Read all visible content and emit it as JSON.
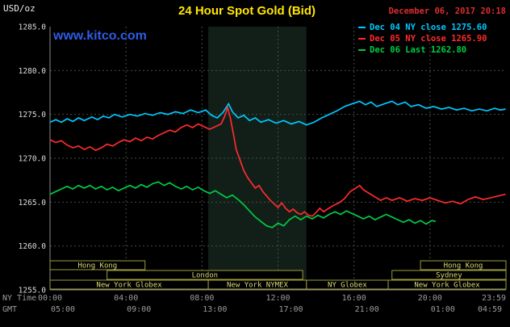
{
  "header": {
    "units_label": "USD/oz",
    "title": "24 Hour Spot Gold (Bid)",
    "datetime": "December 06, 2017 20:18",
    "watermark": "www.kitco.com"
  },
  "legend": {
    "items": [
      {
        "label": "Dec 04 NY close 1275.60",
        "color": "#00c8ff"
      },
      {
        "label": "Dec 05 NY close 1265.90",
        "color": "#ff2b2b"
      },
      {
        "label": "Dec 06 Last 1262.80",
        "color": "#00cc44"
      }
    ]
  },
  "colors": {
    "background": "#000000",
    "title": "#ffe600",
    "datetime": "#dd2c2c",
    "watermark": "#2e5ce6",
    "units_text": "#ededed",
    "y_axis_text": "#dedede",
    "axis_text": "#9c9c9c",
    "axis_line": "#8a8a8a",
    "grid": "#444c44",
    "band": "#121f19",
    "session_text": "#d9d97a",
    "session_border": "#9b9b3d"
  },
  "chart_data": {
    "type": "line",
    "title": "24 Hour Spot Gold (Bid)",
    "ylabel": "USD/oz",
    "x_unit": "hours (NY time)",
    "ylim": [
      1255,
      1285
    ],
    "xlim": [
      0,
      24
    ],
    "grid": true,
    "legend_position": "top-right",
    "y_ticks": [
      1255,
      1260,
      1265,
      1270,
      1275,
      1280,
      1285
    ],
    "grid_vertical_hours": [
      4,
      8,
      12,
      16,
      20
    ],
    "x_ticks_ny": [
      {
        "hour": 0,
        "label": "00:00"
      },
      {
        "hour": 4,
        "label": "04:00"
      },
      {
        "hour": 8,
        "label": "08:00"
      },
      {
        "hour": 12,
        "label": "12:00"
      },
      {
        "hour": 16,
        "label": "16:00"
      },
      {
        "hour": 20,
        "label": "20:00"
      },
      {
        "hour": 23.983,
        "label": "23:59"
      }
    ],
    "x_ticks_gmt": [
      {
        "hour": 0,
        "label": "05:00"
      },
      {
        "hour": 4,
        "label": "09:00"
      },
      {
        "hour": 8,
        "label": "13:00"
      },
      {
        "hour": 12,
        "label": "17:00"
      },
      {
        "hour": 16,
        "label": "21:00"
      },
      {
        "hour": 20,
        "label": "01:00"
      },
      {
        "hour": 23.983,
        "label": "04:59"
      }
    ],
    "row_labels": {
      "ny": "NY Time",
      "gmt": "GMT"
    },
    "band": {
      "start_hour": 8.33,
      "end_hour": 13.5
    },
    "sessions": [
      {
        "label": "Hong Kong",
        "row": 0,
        "start": 0,
        "end": 5
      },
      {
        "label": "Hong Kong",
        "row": 0,
        "start": 19.5,
        "end": 24
      },
      {
        "label": "London",
        "row": 1,
        "start": 3,
        "end": 13.3
      },
      {
        "label": "Sydney",
        "row": 1,
        "start": 18,
        "end": 24
      },
      {
        "label": "New York Globex",
        "row": 2,
        "start": 0,
        "end": 8.33
      },
      {
        "label": "New York NYMEX",
        "row": 2,
        "start": 8.33,
        "end": 13.5
      },
      {
        "label": "NY Globex",
        "row": 2,
        "start": 13.5,
        "end": 17.8
      },
      {
        "label": "New York Globex",
        "row": 2,
        "start": 17.8,
        "end": 24
      }
    ],
    "series": [
      {
        "id": "dec04",
        "name": "Dec 04 NY close",
        "last": 1275.6,
        "color": "#00c8ff",
        "points": [
          [
            0,
            1274.1
          ],
          [
            0.3,
            1274.4
          ],
          [
            0.6,
            1274.1
          ],
          [
            0.9,
            1274.5
          ],
          [
            1.2,
            1274.2
          ],
          [
            1.5,
            1274.6
          ],
          [
            1.8,
            1274.3
          ],
          [
            2.2,
            1274.7
          ],
          [
            2.5,
            1274.4
          ],
          [
            2.8,
            1274.8
          ],
          [
            3.1,
            1274.6
          ],
          [
            3.4,
            1275.0
          ],
          [
            3.8,
            1274.7
          ],
          [
            4.2,
            1275.0
          ],
          [
            4.6,
            1274.8
          ],
          [
            5,
            1275.1
          ],
          [
            5.4,
            1274.9
          ],
          [
            5.8,
            1275.2
          ],
          [
            6.2,
            1275.0
          ],
          [
            6.6,
            1275.3
          ],
          [
            7,
            1275.1
          ],
          [
            7.4,
            1275.5
          ],
          [
            7.8,
            1275.2
          ],
          [
            8.2,
            1275.5
          ],
          [
            8.5,
            1274.9
          ],
          [
            8.8,
            1274.6
          ],
          [
            9.1,
            1275.2
          ],
          [
            9.4,
            1276.2
          ],
          [
            9.6,
            1275.3
          ],
          [
            9.9,
            1274.6
          ],
          [
            10.2,
            1274.9
          ],
          [
            10.5,
            1274.3
          ],
          [
            10.8,
            1274.6
          ],
          [
            11.1,
            1274.1
          ],
          [
            11.5,
            1274.4
          ],
          [
            11.9,
            1274.0
          ],
          [
            12.3,
            1274.3
          ],
          [
            12.7,
            1273.9
          ],
          [
            13.1,
            1274.2
          ],
          [
            13.5,
            1273.8
          ],
          [
            13.9,
            1274.1
          ],
          [
            14.3,
            1274.6
          ],
          [
            14.7,
            1275.0
          ],
          [
            15.1,
            1275.4
          ],
          [
            15.5,
            1275.9
          ],
          [
            15.9,
            1276.2
          ],
          [
            16.3,
            1276.5
          ],
          [
            16.6,
            1276.1
          ],
          [
            16.9,
            1276.4
          ],
          [
            17.2,
            1275.9
          ],
          [
            17.6,
            1276.2
          ],
          [
            18,
            1276.5
          ],
          [
            18.3,
            1276.1
          ],
          [
            18.7,
            1276.4
          ],
          [
            19,
            1275.9
          ],
          [
            19.4,
            1276.1
          ],
          [
            19.8,
            1275.7
          ],
          [
            20.2,
            1275.9
          ],
          [
            20.6,
            1275.6
          ],
          [
            21,
            1275.8
          ],
          [
            21.4,
            1275.5
          ],
          [
            21.8,
            1275.7
          ],
          [
            22.2,
            1275.4
          ],
          [
            22.6,
            1275.6
          ],
          [
            23,
            1275.4
          ],
          [
            23.4,
            1275.7
          ],
          [
            23.7,
            1275.5
          ],
          [
            23.98,
            1275.6
          ]
        ]
      },
      {
        "id": "dec05",
        "name": "Dec 05 NY close",
        "last": 1265.9,
        "color": "#ff2b2b",
        "points": [
          [
            0,
            1272.1
          ],
          [
            0.3,
            1271.8
          ],
          [
            0.6,
            1272.0
          ],
          [
            0.9,
            1271.5
          ],
          [
            1.2,
            1271.2
          ],
          [
            1.5,
            1271.4
          ],
          [
            1.8,
            1271.0
          ],
          [
            2.1,
            1271.3
          ],
          [
            2.4,
            1270.9
          ],
          [
            2.7,
            1271.2
          ],
          [
            3,
            1271.6
          ],
          [
            3.3,
            1271.4
          ],
          [
            3.6,
            1271.8
          ],
          [
            3.9,
            1272.1
          ],
          [
            4.2,
            1271.9
          ],
          [
            4.5,
            1272.3
          ],
          [
            4.8,
            1272.0
          ],
          [
            5.1,
            1272.4
          ],
          [
            5.4,
            1272.2
          ],
          [
            5.7,
            1272.6
          ],
          [
            6,
            1272.9
          ],
          [
            6.3,
            1273.2
          ],
          [
            6.6,
            1273.0
          ],
          [
            6.9,
            1273.5
          ],
          [
            7.2,
            1273.8
          ],
          [
            7.5,
            1273.5
          ],
          [
            7.8,
            1273.9
          ],
          [
            8.1,
            1273.6
          ],
          [
            8.4,
            1273.3
          ],
          [
            8.7,
            1273.6
          ],
          [
            9,
            1273.9
          ],
          [
            9.2,
            1274.8
          ],
          [
            9.35,
            1275.8
          ],
          [
            9.5,
            1274.5
          ],
          [
            9.65,
            1272.8
          ],
          [
            9.8,
            1271.0
          ],
          [
            10,
            1269.8
          ],
          [
            10.2,
            1268.6
          ],
          [
            10.4,
            1267.8
          ],
          [
            10.6,
            1267.2
          ],
          [
            10.8,
            1266.6
          ],
          [
            11,
            1266.9
          ],
          [
            11.2,
            1266.2
          ],
          [
            11.4,
            1265.7
          ],
          [
            11.6,
            1265.2
          ],
          [
            11.8,
            1264.8
          ],
          [
            12,
            1264.4
          ],
          [
            12.2,
            1264.9
          ],
          [
            12.4,
            1264.3
          ],
          [
            12.6,
            1263.9
          ],
          [
            12.8,
            1264.2
          ],
          [
            13,
            1263.8
          ],
          [
            13.2,
            1263.6
          ],
          [
            13.4,
            1263.9
          ],
          [
            13.6,
            1263.5
          ],
          [
            13.8,
            1263.4
          ],
          [
            14,
            1263.8
          ],
          [
            14.2,
            1264.3
          ],
          [
            14.4,
            1263.9
          ],
          [
            14.6,
            1264.2
          ],
          [
            14.9,
            1264.6
          ],
          [
            15.2,
            1264.9
          ],
          [
            15.5,
            1265.4
          ],
          [
            15.8,
            1266.2
          ],
          [
            16.1,
            1266.6
          ],
          [
            16.3,
            1266.9
          ],
          [
            16.5,
            1266.4
          ],
          [
            16.8,
            1266.0
          ],
          [
            17.1,
            1265.6
          ],
          [
            17.4,
            1265.2
          ],
          [
            17.7,
            1265.5
          ],
          [
            18,
            1265.2
          ],
          [
            18.4,
            1265.5
          ],
          [
            18.8,
            1265.1
          ],
          [
            19.2,
            1265.4
          ],
          [
            19.6,
            1265.2
          ],
          [
            20,
            1265.5
          ],
          [
            20.4,
            1265.2
          ],
          [
            20.8,
            1264.9
          ],
          [
            21.2,
            1265.1
          ],
          [
            21.6,
            1264.8
          ],
          [
            22,
            1265.3
          ],
          [
            22.4,
            1265.6
          ],
          [
            22.8,
            1265.3
          ],
          [
            23.2,
            1265.5
          ],
          [
            23.6,
            1265.7
          ],
          [
            23.98,
            1265.9
          ]
        ]
      },
      {
        "id": "dec06",
        "name": "Dec 06 Last",
        "last": 1262.8,
        "color": "#00cc44",
        "points": [
          [
            0,
            1265.9
          ],
          [
            0.3,
            1266.2
          ],
          [
            0.6,
            1266.5
          ],
          [
            0.9,
            1266.8
          ],
          [
            1.2,
            1266.5
          ],
          [
            1.5,
            1266.9
          ],
          [
            1.8,
            1266.6
          ],
          [
            2.1,
            1266.9
          ],
          [
            2.4,
            1266.5
          ],
          [
            2.7,
            1266.8
          ],
          [
            3,
            1266.4
          ],
          [
            3.3,
            1266.7
          ],
          [
            3.6,
            1266.3
          ],
          [
            3.9,
            1266.6
          ],
          [
            4.2,
            1266.9
          ],
          [
            4.5,
            1266.6
          ],
          [
            4.8,
            1267.0
          ],
          [
            5.1,
            1266.7
          ],
          [
            5.4,
            1267.1
          ],
          [
            5.7,
            1267.3
          ],
          [
            6,
            1266.9
          ],
          [
            6.3,
            1267.2
          ],
          [
            6.6,
            1266.8
          ],
          [
            6.9,
            1266.5
          ],
          [
            7.2,
            1266.8
          ],
          [
            7.5,
            1266.4
          ],
          [
            7.8,
            1266.7
          ],
          [
            8.1,
            1266.3
          ],
          [
            8.4,
            1266.0
          ],
          [
            8.7,
            1266.3
          ],
          [
            9,
            1265.9
          ],
          [
            9.3,
            1265.5
          ],
          [
            9.6,
            1265.8
          ],
          [
            9.9,
            1265.3
          ],
          [
            10.2,
            1264.7
          ],
          [
            10.5,
            1264.0
          ],
          [
            10.8,
            1263.3
          ],
          [
            11.1,
            1262.8
          ],
          [
            11.4,
            1262.3
          ],
          [
            11.7,
            1262.1
          ],
          [
            12,
            1262.6
          ],
          [
            12.3,
            1262.3
          ],
          [
            12.6,
            1263.0
          ],
          [
            12.9,
            1263.4
          ],
          [
            13.2,
            1263.0
          ],
          [
            13.5,
            1263.4
          ],
          [
            13.8,
            1263.1
          ],
          [
            14.1,
            1263.5
          ],
          [
            14.4,
            1263.2
          ],
          [
            14.7,
            1263.6
          ],
          [
            15,
            1263.9
          ],
          [
            15.3,
            1263.6
          ],
          [
            15.6,
            1264.0
          ],
          [
            15.9,
            1263.7
          ],
          [
            16.2,
            1263.4
          ],
          [
            16.5,
            1263.1
          ],
          [
            16.8,
            1263.4
          ],
          [
            17.1,
            1263.0
          ],
          [
            17.4,
            1263.3
          ],
          [
            17.7,
            1263.6
          ],
          [
            18,
            1263.3
          ],
          [
            18.3,
            1263.0
          ],
          [
            18.6,
            1262.7
          ],
          [
            18.9,
            1263.0
          ],
          [
            19.2,
            1262.6
          ],
          [
            19.5,
            1262.9
          ],
          [
            19.8,
            1262.5
          ],
          [
            20.1,
            1262.9
          ],
          [
            20.3,
            1262.8
          ]
        ]
      }
    ]
  }
}
